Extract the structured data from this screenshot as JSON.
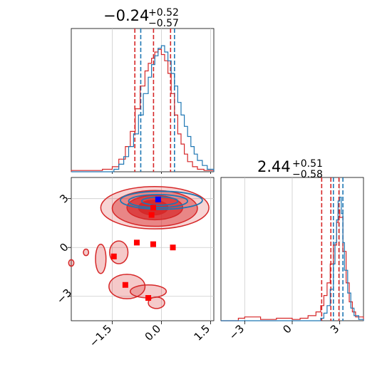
{
  "chart_data": {
    "type": "corner",
    "parameters": [
      {
        "title_value": "−0.24",
        "title_plus": "+0.52",
        "title_minus": "−0.57"
      },
      {
        "title_value": "2.44",
        "title_plus": "+0.51",
        "title_minus": "−0.58"
      }
    ],
    "x_ticks": [
      "−1.5",
      "0.0",
      "1.5"
    ],
    "y_ticks": [
      "3",
      "0",
      "−3"
    ],
    "diag2_ticks": [
      "−3",
      "0",
      "3"
    ],
    "xlim": [
      -2.75,
      1.6
    ],
    "ylim": [
      -4.5,
      4.3
    ],
    "diag2_xlim": [
      -4.5,
      4.5
    ],
    "colors": {
      "red": "#d62728",
      "blue": "#1f77b4",
      "grid": "#cccccc",
      "marker_blue": "#0000ff"
    },
    "diag1": {
      "red_quantiles": [
        -0.81,
        -0.24,
        0.28
      ],
      "blue_quantiles": [
        -0.63,
        0.4
      ],
      "red_hist": [
        [
          -2.75,
          0.01
        ],
        [
          -2.2,
          0.01
        ],
        [
          -1.8,
          0.02
        ],
        [
          -1.5,
          0.04
        ],
        [
          -1.3,
          0.1
        ],
        [
          -1.1,
          0.2
        ],
        [
          -0.95,
          0.32
        ],
        [
          -0.8,
          0.5
        ],
        [
          -0.65,
          0.68
        ],
        [
          -0.5,
          0.8
        ],
        [
          -0.4,
          0.86
        ],
        [
          -0.3,
          0.9
        ],
        [
          -0.2,
          0.95
        ],
        [
          -0.1,
          0.97
        ],
        [
          0.0,
          0.93
        ],
        [
          0.1,
          0.88
        ],
        [
          0.2,
          0.78
        ],
        [
          0.3,
          0.62
        ],
        [
          0.4,
          0.45
        ],
        [
          0.5,
          0.3
        ],
        [
          0.6,
          0.22
        ],
        [
          0.7,
          0.14
        ],
        [
          0.8,
          0.08
        ],
        [
          0.95,
          0.04
        ],
        [
          1.1,
          0.02
        ],
        [
          1.3,
          0.01
        ],
        [
          1.6,
          0.01
        ]
      ],
      "blue_hist": [
        [
          -2.75,
          0.0
        ],
        [
          -1.6,
          0.0
        ],
        [
          -1.45,
          0.02
        ],
        [
          -1.3,
          0.06
        ],
        [
          -1.15,
          0.12
        ],
        [
          -1.0,
          0.2
        ],
        [
          -0.85,
          0.3
        ],
        [
          -0.7,
          0.45
        ],
        [
          -0.55,
          0.62
        ],
        [
          -0.4,
          0.75
        ],
        [
          -0.3,
          0.85
        ],
        [
          -0.2,
          0.92
        ],
        [
          -0.1,
          0.98
        ],
        [
          0.0,
          1.0
        ],
        [
          0.1,
          0.95
        ],
        [
          0.2,
          0.88
        ],
        [
          0.3,
          0.78
        ],
        [
          0.4,
          0.68
        ],
        [
          0.5,
          0.55
        ],
        [
          0.6,
          0.45
        ],
        [
          0.7,
          0.36
        ],
        [
          0.8,
          0.28
        ],
        [
          0.9,
          0.2
        ],
        [
          1.0,
          0.14
        ],
        [
          1.1,
          0.09
        ],
        [
          1.25,
          0.05
        ],
        [
          1.4,
          0.02
        ],
        [
          1.6,
          0.0
        ]
      ]
    },
    "diag2": {
      "red_quantiles": [
        1.86,
        2.44,
        2.95
      ],
      "blue_quantiles": [
        2.6,
        3.2
      ],
      "red_hist": [
        [
          -4.5,
          0.0
        ],
        [
          -3.4,
          0.02
        ],
        [
          -3.0,
          0.03
        ],
        [
          -2.0,
          0.01
        ],
        [
          -1.0,
          0.02
        ],
        [
          0.0,
          0.01
        ],
        [
          0.5,
          0.02
        ],
        [
          1.0,
          0.04
        ],
        [
          1.5,
          0.07
        ],
        [
          1.8,
          0.12
        ],
        [
          2.0,
          0.2
        ],
        [
          2.2,
          0.3
        ],
        [
          2.4,
          0.45
        ],
        [
          2.6,
          0.6
        ],
        [
          2.8,
          0.78
        ],
        [
          2.9,
          0.88
        ],
        [
          3.0,
          0.82
        ],
        [
          3.2,
          0.55
        ],
        [
          3.4,
          0.3
        ],
        [
          3.6,
          0.15
        ],
        [
          3.8,
          0.07
        ],
        [
          4.0,
          0.03
        ],
        [
          4.5,
          0.01
        ]
      ],
      "blue_hist": [
        [
          -4.5,
          0.0
        ],
        [
          1.5,
          0.0
        ],
        [
          1.8,
          0.02
        ],
        [
          2.0,
          0.06
        ],
        [
          2.2,
          0.12
        ],
        [
          2.4,
          0.25
        ],
        [
          2.6,
          0.45
        ],
        [
          2.7,
          0.62
        ],
        [
          2.8,
          0.8
        ],
        [
          2.9,
          0.95
        ],
        [
          3.0,
          0.98
        ],
        [
          3.1,
          0.85
        ],
        [
          3.2,
          0.62
        ],
        [
          3.3,
          0.4
        ],
        [
          3.5,
          0.22
        ],
        [
          3.7,
          0.1
        ],
        [
          3.9,
          0.04
        ],
        [
          4.2,
          0.01
        ],
        [
          4.5,
          0.0
        ]
      ]
    },
    "joint": {
      "red_contours": [
        {
          "cx": -0.2,
          "cy": 2.44,
          "rx": 1.65,
          "ry": 1.3,
          "fill_opacity": 0.2,
          "lw": 1.5
        },
        {
          "cx": -0.2,
          "cy": 2.4,
          "rx": 1.3,
          "ry": 1.1,
          "fill_opacity": 0.45,
          "lw": 1.5
        },
        {
          "cx": -0.2,
          "cy": 2.45,
          "rx": 0.85,
          "ry": 0.75,
          "fill_opacity": 0.7,
          "lw": 1.5
        },
        {
          "cx": -0.25,
          "cy": 2.45,
          "rx": 0.45,
          "ry": 0.45,
          "fill_opacity": 0.9,
          "lw": 1.5
        }
      ],
      "red_islands": [
        {
          "cx": -1.85,
          "cy": -0.7,
          "rx": 0.16,
          "ry": 0.9,
          "fill_opacity": 0.25
        },
        {
          "cx": -1.3,
          "cy": -0.3,
          "rx": 0.28,
          "ry": 0.7,
          "fill_opacity": 0.25
        },
        {
          "cx": -1.05,
          "cy": -2.4,
          "rx": 0.55,
          "ry": 0.75,
          "fill_opacity": 0.25
        },
        {
          "cx": -0.4,
          "cy": -2.7,
          "rx": 0.55,
          "ry": 0.4,
          "fill_opacity": 0.25
        },
        {
          "cx": -0.15,
          "cy": -3.4,
          "rx": 0.25,
          "ry": 0.35,
          "fill_opacity": 0.25
        },
        {
          "cx": -2.75,
          "cy": -0.95,
          "rx": 0.08,
          "ry": 0.2,
          "fill_opacity": 0.25
        },
        {
          "cx": -2.3,
          "cy": -0.3,
          "rx": 0.08,
          "ry": 0.2,
          "fill_opacity": 0.25
        }
      ],
      "blue_contours": [
        {
          "cx": 0.0,
          "cy": 2.9,
          "rx": 1.25,
          "ry": 0.55
        },
        {
          "cx": -0.1,
          "cy": 2.85,
          "rx": 0.9,
          "ry": 0.4
        },
        {
          "cx": -0.05,
          "cy": 2.85,
          "rx": 0.55,
          "ry": 0.25
        }
      ],
      "red_markers": [
        [
          -0.25,
          2.45
        ],
        [
          -0.3,
          2.0
        ],
        [
          -0.75,
          0.3
        ],
        [
          -0.25,
          0.2
        ],
        [
          0.35,
          0.0
        ],
        [
          -1.45,
          -0.55
        ],
        [
          -1.1,
          -2.3
        ],
        [
          -0.4,
          -3.1
        ]
      ],
      "blue_marker": [
        -0.1,
        2.95
      ]
    }
  }
}
